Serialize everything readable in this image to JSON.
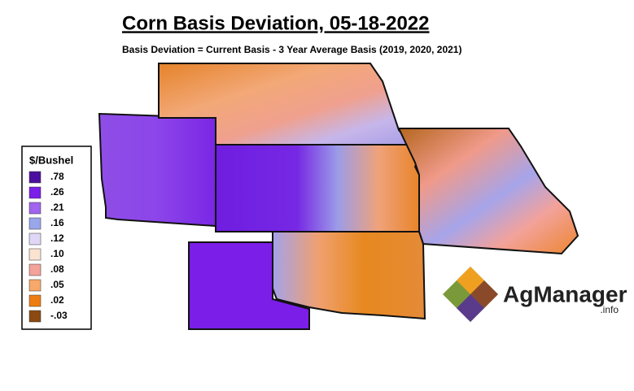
{
  "title": "Corn Basis Deviation, 05-18-2022",
  "subtitle": "Basis Deviation = Current Basis - 3 Year Average Basis (2019, 2020, 2021)",
  "legend": {
    "title": "$/Bushel",
    "items": [
      {
        "label": ".78",
        "color": "#4a0f9e"
      },
      {
        "label": ".26",
        "color": "#7a1ee8"
      },
      {
        "label": ".21",
        "color": "#a064ee"
      },
      {
        "label": ".16",
        "color": "#9aa6ea"
      },
      {
        "label": ".12",
        "color": "#e0d6f5"
      },
      {
        "label": ".10",
        "color": "#fbe3d2"
      },
      {
        "label": ".08",
        "color": "#f4a39a"
      },
      {
        "label": ".05",
        "color": "#f7a86a"
      },
      {
        "label": ".02",
        "color": "#ed7d12"
      },
      {
        "label": "-.03",
        "color": "#8b4a12"
      }
    ]
  },
  "logo": {
    "name": "AgManager",
    "suffix": ".info"
  }
}
